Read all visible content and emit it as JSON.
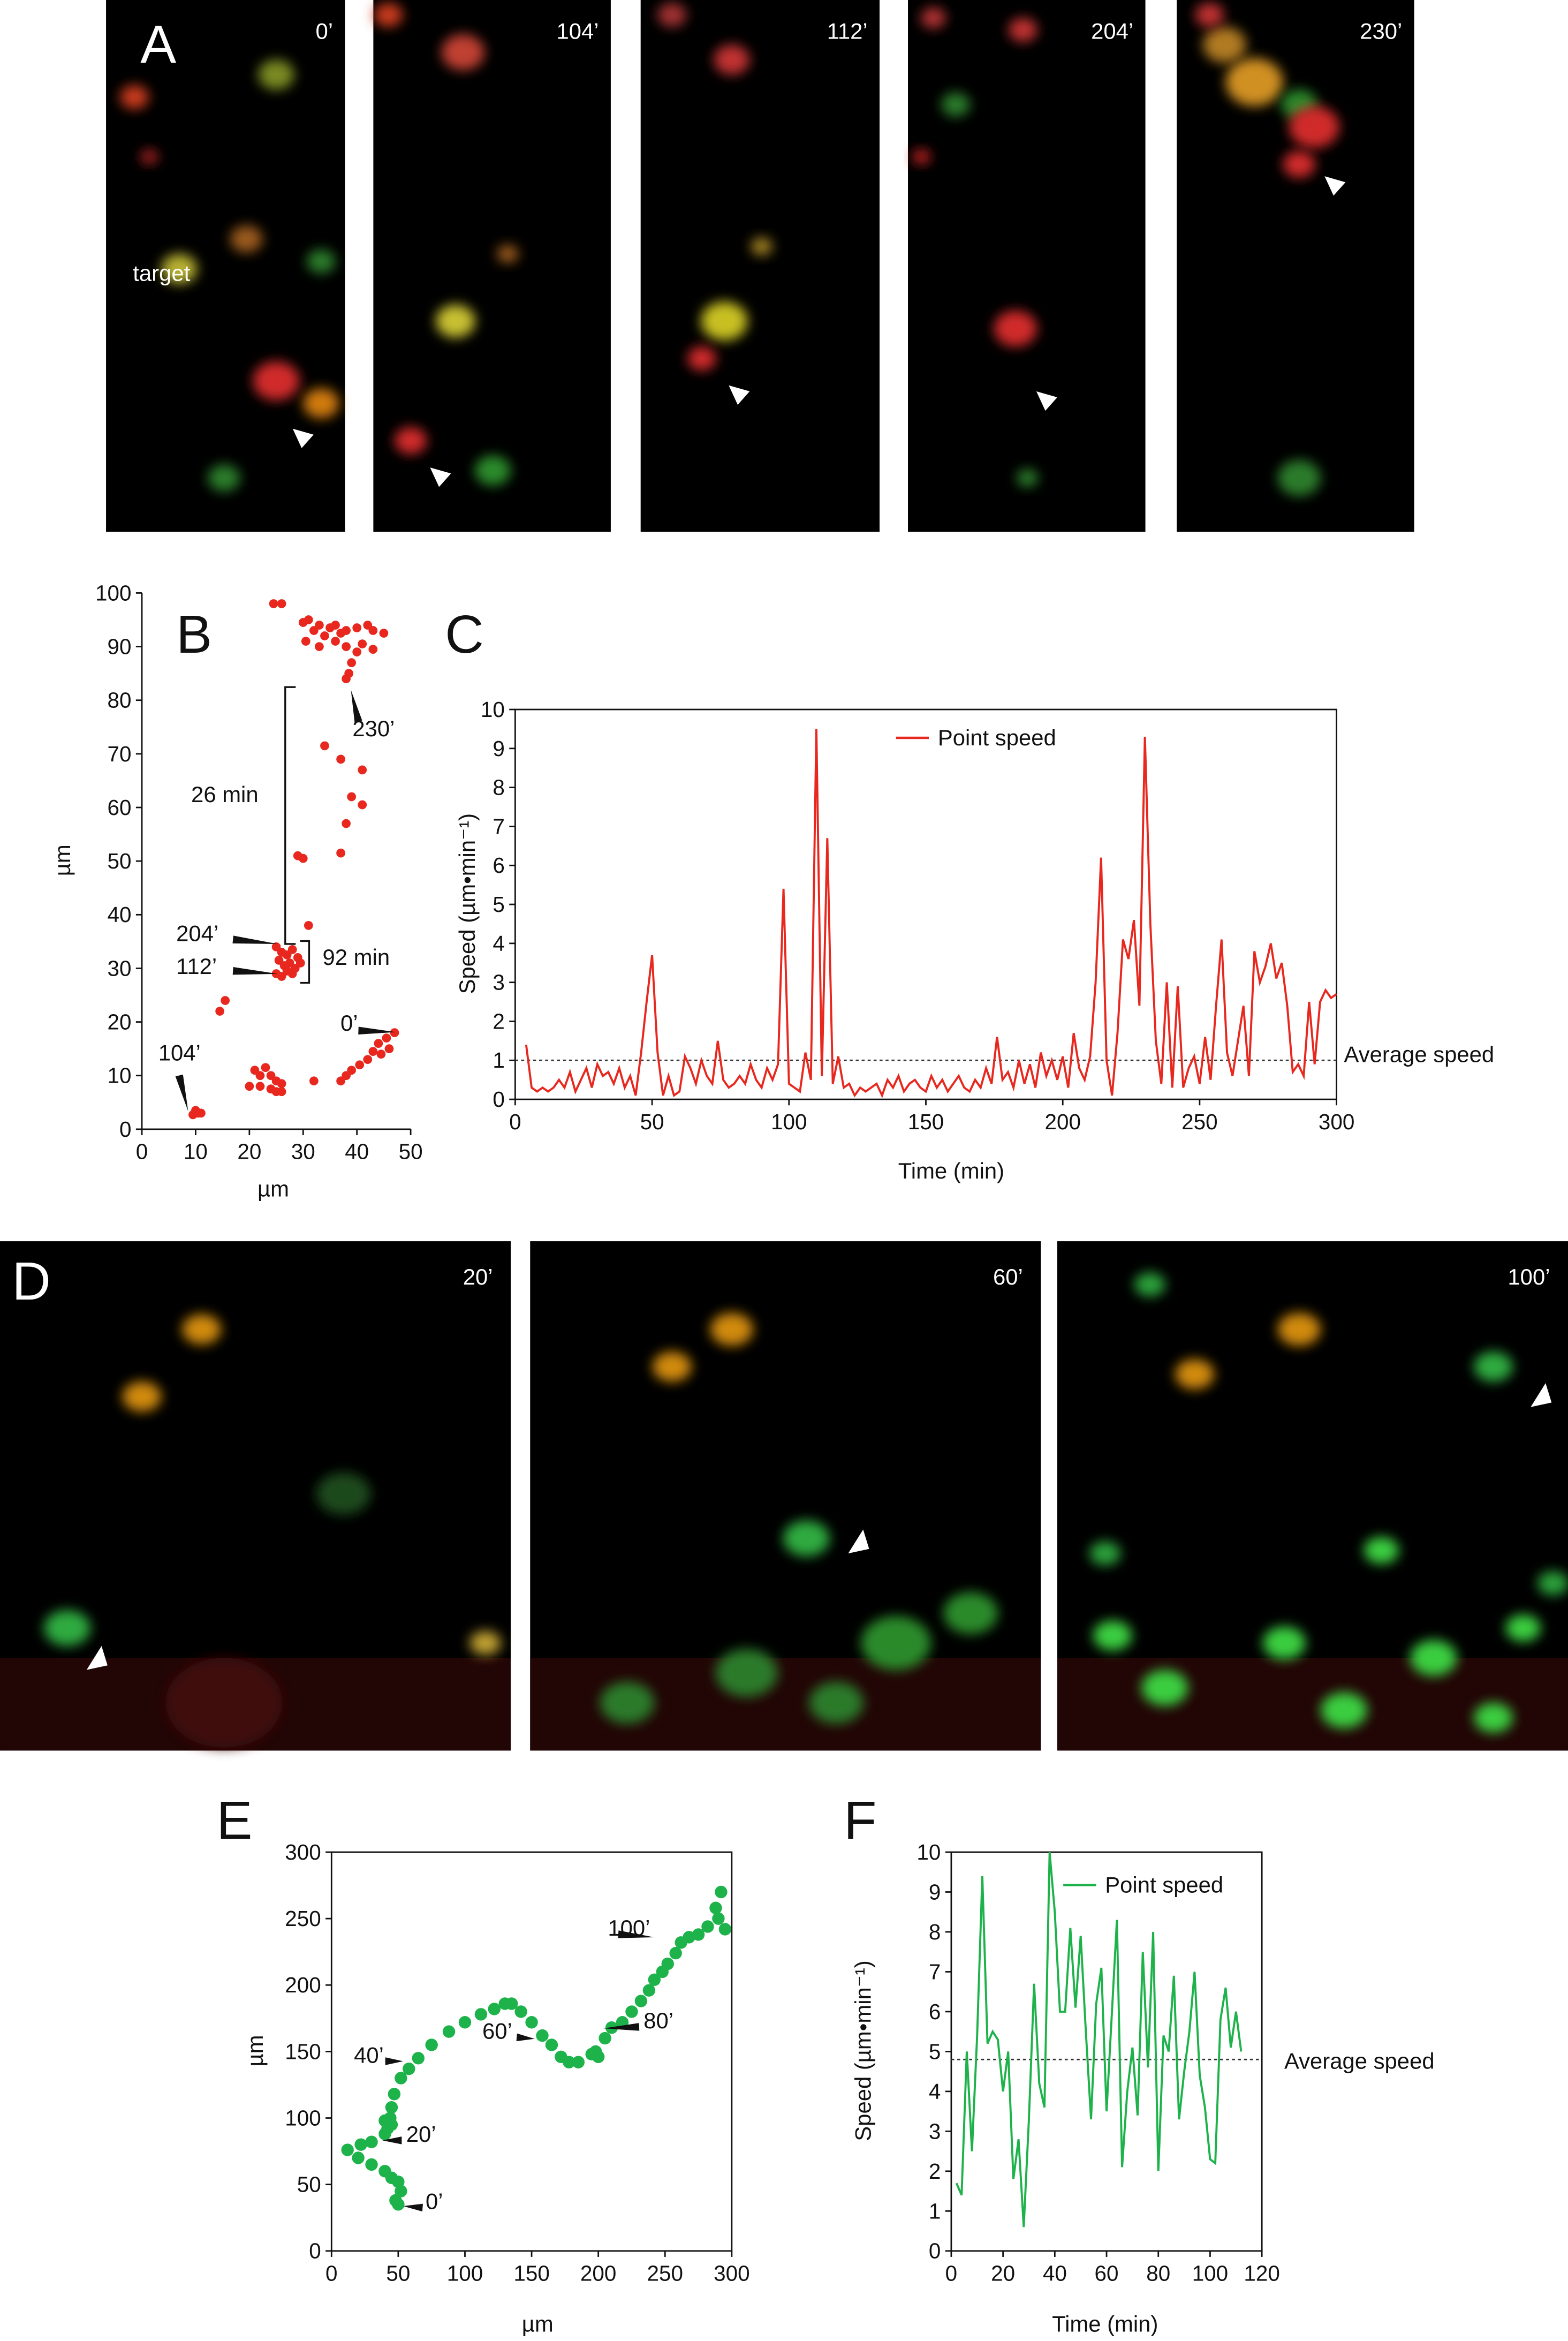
{
  "image_panels": [
    {
      "letter": "A",
      "frames": [
        "0’",
        "104’",
        "112’",
        "204’",
        "230’"
      ],
      "annotation": "target"
    },
    {
      "letter": "D",
      "frames": [
        "20’",
        "60’",
        "100’"
      ]
    }
  ],
  "chart_data": [
    {
      "type": "scatter",
      "panel_letter": "B",
      "x_label": "µm",
      "y_label": "µm",
      "color": "#e8281e",
      "xlim": [
        0,
        50
      ],
      "xticks": [
        0,
        10,
        20,
        30,
        40,
        50
      ],
      "ylim": [
        0,
        100
      ],
      "yticks": [
        0,
        10,
        20,
        30,
        40,
        50,
        60,
        70,
        80,
        90,
        100
      ],
      "x": [
        24.5,
        26,
        30,
        31,
        32,
        33,
        34,
        35,
        36,
        37,
        38,
        40,
        42,
        43,
        45,
        30.5,
        33,
        36,
        38,
        40,
        41,
        43,
        39,
        38.5,
        38,
        34,
        37,
        41,
        39,
        41,
        38,
        37,
        29,
        30,
        31,
        25,
        26,
        27,
        28,
        29,
        25.5,
        26.5,
        27.5,
        28.5,
        29.5,
        25,
        26,
        27,
        28,
        15.5,
        14.5,
        47,
        45.5,
        44,
        46,
        43,
        42,
        40.5,
        39,
        38,
        37,
        44.5,
        32,
        21,
        22,
        23,
        24,
        25,
        26,
        20,
        22,
        24,
        25,
        26,
        10,
        10.5,
        9.5,
        11
      ],
      "values": [
        98,
        98,
        94.5,
        95,
        93,
        94,
        92,
        93.5,
        94,
        92.5,
        93,
        93.5,
        94,
        93,
        92.5,
        91,
        90,
        91,
        90,
        89,
        90.5,
        89.5,
        87,
        85,
        84,
        71.5,
        69,
        67,
        62,
        60.5,
        57,
        51.5,
        51,
        50.5,
        38,
        34,
        33,
        32.5,
        33.5,
        32,
        31.5,
        30.5,
        31,
        30,
        31,
        29,
        28.5,
        29.5,
        29,
        24,
        22,
        18,
        17,
        16,
        15,
        14.5,
        13,
        12,
        11,
        10,
        9,
        14,
        9,
        11,
        10,
        11.5,
        10,
        9,
        8.5,
        8,
        8,
        7.5,
        7,
        7,
        3.5,
        3,
        2.7,
        3
      ],
      "annotations": [
        "230’",
        "26 min",
        "204’",
        "112’",
        "92 min",
        "0’",
        "104’"
      ]
    },
    {
      "type": "line",
      "panel_letter": "C",
      "x_label": "Time (min)",
      "y_label": "Speed (µm•min⁻¹)",
      "xlim": [
        0,
        300
      ],
      "xticks": [
        0,
        50,
        100,
        150,
        200,
        250,
        300
      ],
      "ylim": [
        0,
        10
      ],
      "yticks": [
        0,
        1,
        2,
        3,
        4,
        5,
        6,
        7,
        8,
        9,
        10
      ],
      "average": {
        "value": 1,
        "label": "Average speed"
      },
      "x": [
        4,
        6,
        8,
        10,
        12,
        14,
        16,
        18,
        20,
        22,
        24,
        26,
        28,
        30,
        32,
        34,
        36,
        38,
        40,
        42,
        44,
        46,
        48,
        50,
        52,
        54,
        56,
        58,
        60,
        62,
        64,
        66,
        68,
        70,
        72,
        74,
        76,
        78,
        80,
        82,
        84,
        86,
        88,
        90,
        92,
        94,
        96,
        98,
        100,
        102,
        104,
        106,
        108,
        110,
        112,
        114,
        116,
        118,
        120,
        122,
        124,
        126,
        128,
        130,
        132,
        134,
        136,
        138,
        140,
        142,
        144,
        146,
        148,
        150,
        152,
        154,
        156,
        158,
        160,
        162,
        164,
        166,
        168,
        170,
        172,
        174,
        176,
        178,
        180,
        182,
        184,
        186,
        188,
        190,
        192,
        194,
        196,
        198,
        200,
        202,
        204,
        206,
        208,
        210,
        212,
        214,
        216,
        218,
        220,
        222,
        224,
        226,
        228,
        230,
        232,
        234,
        236,
        238,
        240,
        242,
        244,
        246,
        248,
        250,
        252,
        254,
        256,
        258,
        260,
        262,
        264,
        266,
        268,
        270,
        272,
        274,
        276,
        278,
        280,
        282,
        284,
        286,
        288,
        290,
        292,
        294,
        296,
        298,
        300
      ],
      "series": [
        {
          "name": "Point speed",
          "color": "#e8281e",
          "values": [
            1.4,
            0.3,
            0.2,
            0.3,
            0.2,
            0.3,
            0.5,
            0.3,
            0.7,
            0.2,
            0.5,
            0.8,
            0.3,
            0.9,
            0.6,
            0.7,
            0.4,
            0.8,
            0.3,
            0.6,
            0.1,
            1.2,
            2.5,
            3.7,
            1.2,
            0.1,
            0.6,
            0.1,
            0.2,
            1.1,
            0.8,
            0.4,
            1.0,
            0.6,
            0.4,
            1.5,
            0.5,
            0.3,
            0.4,
            0.6,
            0.4,
            0.9,
            0.5,
            0.3,
            0.8,
            0.5,
            0.9,
            5.4,
            0.4,
            0.3,
            0.2,
            1.2,
            0.5,
            9.5,
            0.6,
            6.7,
            0.4,
            1.1,
            0.3,
            0.4,
            0.1,
            0.3,
            0.2,
            0.3,
            0.4,
            0.1,
            0.5,
            0.3,
            0.6,
            0.2,
            0.4,
            0.5,
            0.3,
            0.2,
            0.6,
            0.3,
            0.5,
            0.2,
            0.4,
            0.6,
            0.3,
            0.2,
            0.5,
            0.3,
            0.8,
            0.4,
            1.6,
            0.5,
            0.7,
            0.3,
            1.0,
            0.4,
            0.9,
            0.3,
            1.2,
            0.6,
            1.0,
            0.5,
            1.1,
            0.3,
            1.7,
            0.8,
            0.5,
            1.1,
            3.0,
            6.2,
            1.0,
            0.1,
            1.7,
            4.1,
            3.6,
            4.6,
            2.4,
            9.3,
            4.5,
            1.5,
            0.4,
            3.0,
            0.3,
            2.9,
            0.3,
            0.8,
            1.1,
            0.4,
            1.6,
            0.5,
            2.4,
            4.1,
            1.2,
            0.6,
            1.5,
            2.4,
            0.6,
            3.8,
            3.0,
            3.4,
            4.0,
            3.1,
            3.5,
            2.4,
            0.7,
            0.9,
            0.6,
            2.5,
            0.9,
            2.5,
            2.8,
            2.6,
            2.7
          ]
        }
      ]
    },
    {
      "type": "scatter",
      "panel_letter": "E",
      "x_label": "µm",
      "y_label": "µm",
      "color": "#1db34a",
      "xlim": [
        0,
        300
      ],
      "xticks": [
        0,
        50,
        100,
        150,
        200,
        250,
        300
      ],
      "ylim": [
        0,
        300
      ],
      "yticks": [
        0,
        50,
        100,
        150,
        200,
        250,
        300
      ],
      "x": [
        50,
        48,
        52,
        50,
        45,
        40,
        30,
        20,
        12,
        22,
        30,
        40,
        42,
        45,
        44,
        40,
        45,
        47,
        52,
        58,
        65,
        75,
        88,
        100,
        112,
        122,
        130,
        135,
        142,
        150,
        158,
        165,
        172,
        178,
        185,
        195,
        198,
        200,
        205,
        210,
        218,
        225,
        232,
        238,
        242,
        248,
        252,
        258,
        262,
        268,
        275,
        282,
        288,
        292,
        290,
        295
      ],
      "values": [
        35,
        38,
        45,
        52,
        55,
        60,
        65,
        70,
        76,
        80,
        82,
        88,
        92,
        95,
        100,
        98,
        108,
        118,
        130,
        137,
        145,
        155,
        165,
        172,
        178,
        182,
        186,
        186,
        180,
        172,
        162,
        155,
        146,
        142,
        142,
        148,
        150,
        146,
        160,
        168,
        172,
        180,
        188,
        196,
        204,
        210,
        216,
        224,
        232,
        236,
        238,
        244,
        258,
        270,
        250,
        242
      ],
      "annotations": [
        "100’",
        "80’",
        "40’",
        "60’",
        "20’",
        "0’"
      ]
    },
    {
      "type": "line",
      "panel_letter": "F",
      "x_label": "Time (min)",
      "y_label": "Speed (µm•min⁻¹)",
      "xlim": [
        0,
        120
      ],
      "xticks": [
        0,
        20,
        40,
        60,
        80,
        100,
        120
      ],
      "ylim": [
        0,
        10
      ],
      "yticks": [
        0,
        1,
        2,
        3,
        4,
        5,
        6,
        7,
        8,
        9,
        10
      ],
      "average": {
        "value": 4.8,
        "label": "Average speed"
      },
      "x": [
        2,
        4,
        6,
        8,
        10,
        12,
        14,
        16,
        18,
        20,
        22,
        24,
        26,
        28,
        30,
        32,
        34,
        36,
        38,
        40,
        42,
        44,
        46,
        48,
        50,
        52,
        54,
        56,
        58,
        60,
        62,
        64,
        66,
        68,
        70,
        72,
        74,
        76,
        78,
        80,
        82,
        84,
        86,
        88,
        90,
        92,
        94,
        96,
        98,
        100,
        102,
        104,
        106,
        108,
        110,
        112
      ],
      "series": [
        {
          "name": "Point speed",
          "color": "#1db34a",
          "values": [
            1.7,
            1.4,
            5.0,
            2.5,
            5.4,
            9.4,
            5.2,
            5.5,
            5.3,
            4.0,
            5.0,
            1.8,
            2.8,
            0.6,
            3.3,
            6.7,
            4.2,
            3.6,
            10.0,
            8.5,
            6.0,
            6.0,
            8.1,
            6.1,
            7.9,
            5.5,
            3.3,
            6.2,
            7.1,
            3.5,
            5.9,
            8.3,
            2.1,
            4.0,
            5.1,
            3.4,
            7.5,
            4.6,
            8.0,
            2.0,
            5.4,
            5.0,
            6.9,
            3.3,
            4.5,
            5.5,
            7.0,
            4.4,
            3.6,
            2.3,
            2.2,
            5.8,
            6.6,
            5.1,
            6.0,
            5.0
          ]
        }
      ]
    }
  ]
}
